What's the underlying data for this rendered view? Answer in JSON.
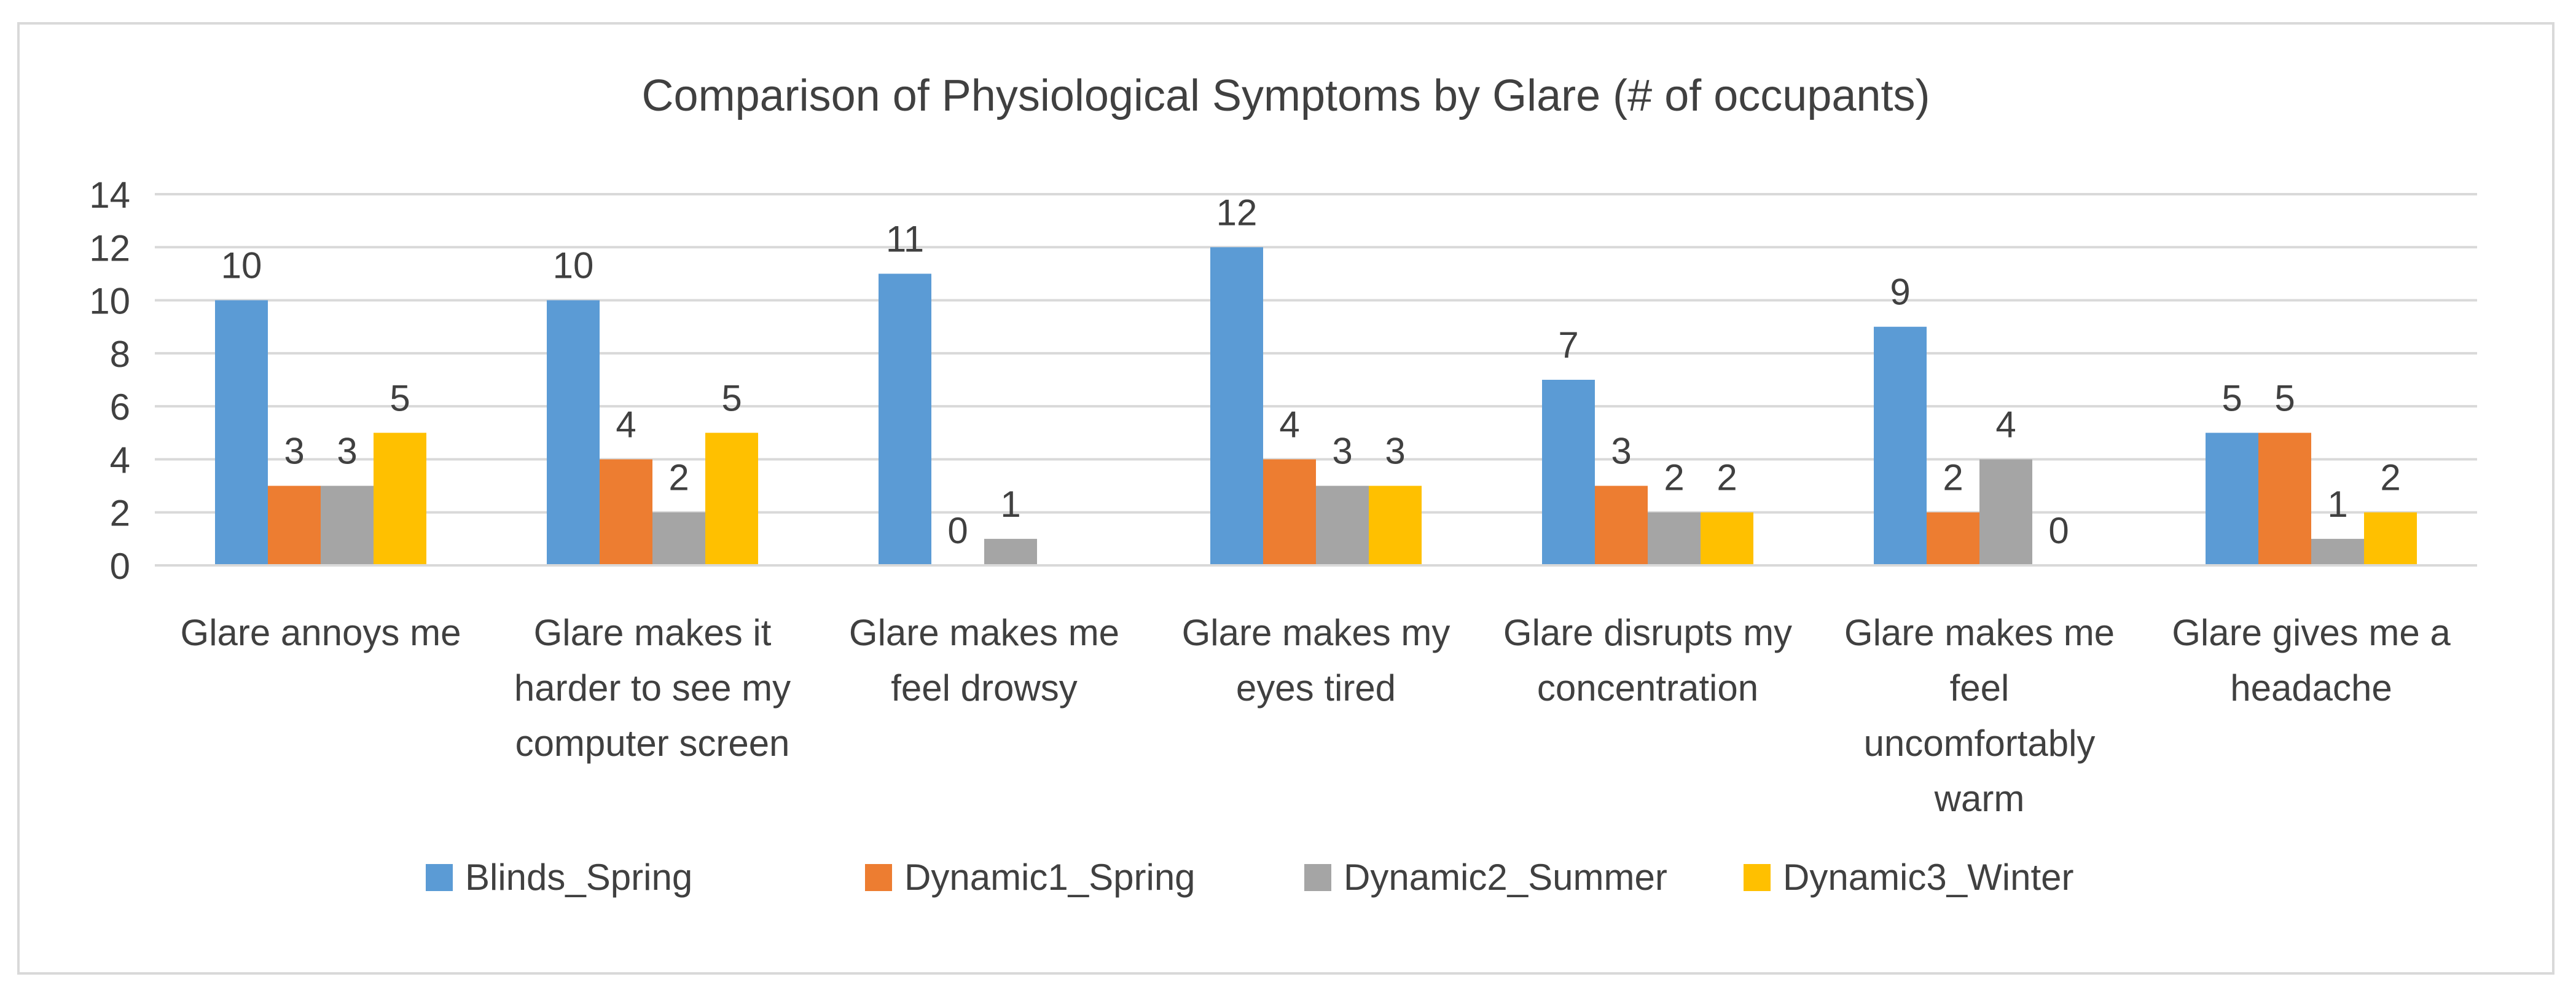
{
  "chart_data": {
    "type": "bar",
    "title": "Comparison of Physiological Symptoms by Glare (# of occupants)",
    "xlabel": "",
    "ylabel": "",
    "ylim": [
      0,
      14
    ],
    "yticks": [
      0,
      2,
      4,
      6,
      8,
      10,
      12,
      14
    ],
    "grid": true,
    "legend_position": "bottom",
    "categories": [
      "Glare annoys me",
      "Glare makes it harder to see my computer screen",
      "Glare makes me feel drowsy",
      "Glare makes my eyes tired",
      "Glare disrupts my concentration",
      "Glare makes me feel uncomfortably warm",
      "Glare gives me a headache"
    ],
    "category_lines": [
      [
        "Glare annoys me"
      ],
      [
        "Glare makes it",
        "harder to see my",
        "computer screen"
      ],
      [
        "Glare makes me",
        "feel drowsy"
      ],
      [
        "Glare makes my",
        "eyes tired"
      ],
      [
        "Glare disrupts my",
        "concentration"
      ],
      [
        "Glare makes me",
        "feel",
        "uncomfortably",
        "warm"
      ],
      [
        "Glare gives me a",
        "headache"
      ]
    ],
    "series": [
      {
        "name": "Blinds_Spring",
        "color": "#5b9bd5",
        "values": [
          10,
          10,
          11,
          12,
          7,
          9,
          5
        ]
      },
      {
        "name": "Dynamic1_Spring",
        "color": "#ed7d31",
        "values": [
          3,
          4,
          0,
          4,
          3,
          2,
          5
        ]
      },
      {
        "name": "Dynamic2_Summer",
        "color": "#a5a5a5",
        "values": [
          3,
          2,
          1,
          3,
          2,
          4,
          1
        ]
      },
      {
        "name": "Dynamic3_Winter",
        "color": "#ffc000",
        "values": [
          5,
          5,
          0,
          3,
          2,
          0,
          2
        ]
      }
    ],
    "data_labels_shown": [
      [
        true,
        true,
        true,
        true,
        true,
        true,
        true
      ],
      [
        true,
        true,
        true,
        true,
        true,
        true,
        true
      ],
      [
        true,
        true,
        true,
        true,
        true,
        true,
        true
      ],
      [
        true,
        true,
        false,
        true,
        true,
        true,
        true
      ]
    ]
  }
}
